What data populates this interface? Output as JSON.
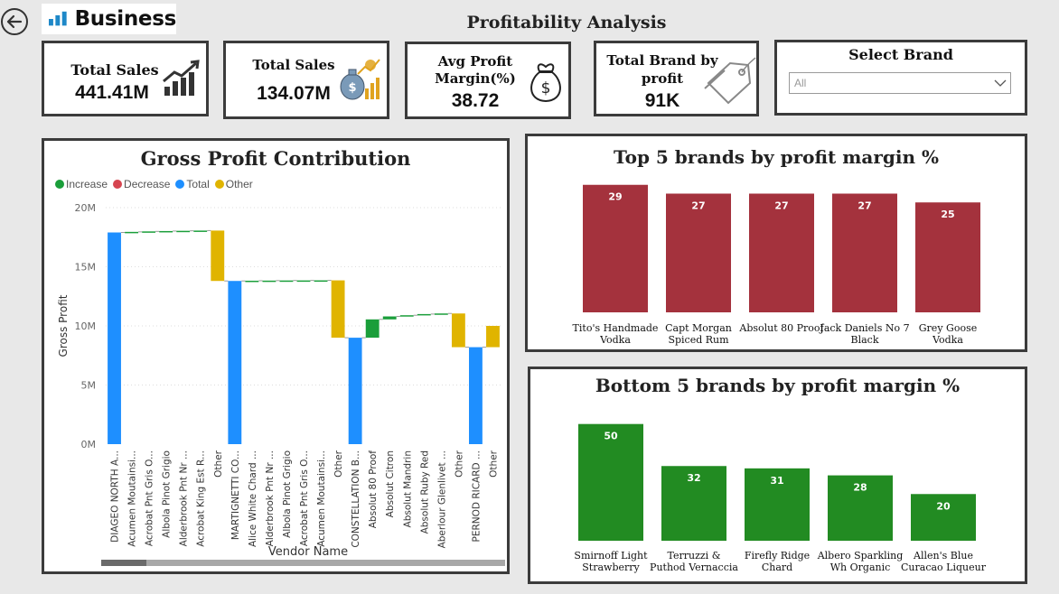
{
  "header": {
    "logo_text": "Business",
    "page_title": "Profitability Analysis"
  },
  "kpis": {
    "total_sales_1": {
      "label": "Total Sales",
      "value": "441.41M",
      "icon": "chart-growth-icon"
    },
    "total_sales_2": {
      "label": "Total Sales",
      "value": "134.07M",
      "icon": "money-bag-growth-icon"
    },
    "avg_profit_margin": {
      "label_line1": "Avg Profit",
      "label_line2": "Margin(%)",
      "value": "38.72",
      "icon": "money-bag-icon"
    },
    "total_brand_by_profit": {
      "label_line1": "Total Brand by",
      "label_line2": "profit",
      "value": "91K",
      "icon": "price-tag-icon"
    }
  },
  "select_brand": {
    "title": "Select Brand",
    "selected": "All",
    "icon": "chevron-down-icon"
  },
  "colors": {
    "increase": "#1a9e3a",
    "decrease": "#d64550",
    "total": "#1e8fff",
    "other": "#e0b400",
    "top5_bar": "#a4323d",
    "bottom5_bar": "#228b22"
  },
  "chart_data": [
    {
      "type": "waterfall",
      "title": "Gross Profit Contribution",
      "xlabel": "Vendor Name",
      "ylabel": "Gross Profit",
      "ylim": [
        0,
        20000000
      ],
      "ytick_labels": [
        "0M",
        "5M",
        "10M",
        "15M",
        "20M"
      ],
      "legend": [
        "Increase",
        "Decrease",
        "Total",
        "Other"
      ],
      "categories": [
        "DIAGEO NORTH A...",
        "Acumen Moutainsi...",
        "Acrobat Pnt Gris O...",
        "Albola Pinot Grigio",
        "Alderbrook Pnt Nr ...",
        "Acrobat King Est R...",
        "Other",
        "MARTIGNETTI CO...",
        "Alice White Chard ...",
        "Alderbrook Pnt Nr ...",
        "Albola Pinot Grigio",
        "Acrobat Pnt Gris O...",
        "Acumen Moutainsi...",
        "Other",
        "CONSTELLATION B...",
        "Absolut 80 Proof",
        "Absolut Citron",
        "Absolut Mandrin",
        "Absolut Ruby Red",
        "Aberlour Glenlivet ...",
        "Other",
        "PERNOD RICARD ...",
        "Other"
      ],
      "bars": [
        {
          "kind": "total",
          "start": 0,
          "end": 17900000
        },
        {
          "kind": "increase",
          "start": 17900000,
          "end": 17950000
        },
        {
          "kind": "increase",
          "start": 17950000,
          "end": 17990000
        },
        {
          "kind": "increase",
          "start": 17990000,
          "end": 18020000
        },
        {
          "kind": "increase",
          "start": 18020000,
          "end": 18040000
        },
        {
          "kind": "increase",
          "start": 18040000,
          "end": 18060000
        },
        {
          "kind": "other",
          "start": 18060000,
          "end": 13800000
        },
        {
          "kind": "total",
          "start": 0,
          "end": 13800000
        },
        {
          "kind": "increase",
          "start": 13800000,
          "end": 13820000
        },
        {
          "kind": "increase",
          "start": 13820000,
          "end": 13830000
        },
        {
          "kind": "increase",
          "start": 13830000,
          "end": 13840000
        },
        {
          "kind": "increase",
          "start": 13840000,
          "end": 13845000
        },
        {
          "kind": "increase",
          "start": 13845000,
          "end": 13850000
        },
        {
          "kind": "other",
          "start": 13850000,
          "end": 9000000
        },
        {
          "kind": "total",
          "start": 0,
          "end": 9000000
        },
        {
          "kind": "increase",
          "start": 9000000,
          "end": 10550000
        },
        {
          "kind": "increase",
          "start": 10550000,
          "end": 10800000
        },
        {
          "kind": "increase",
          "start": 10800000,
          "end": 10900000
        },
        {
          "kind": "increase",
          "start": 10900000,
          "end": 11000000
        },
        {
          "kind": "increase",
          "start": 11000000,
          "end": 11050000
        },
        {
          "kind": "other",
          "start": 11050000,
          "end": 8200000
        },
        {
          "kind": "total",
          "start": 0,
          "end": 8200000
        },
        {
          "kind": "other",
          "start": 8200000,
          "end": 10000000
        }
      ]
    },
    {
      "type": "bar",
      "title": "Top 5 brands by profit margin %",
      "categories": [
        [
          "Tito's Handmade",
          "Vodka"
        ],
        [
          "Capt Morgan",
          "Spiced Rum"
        ],
        [
          "Absolut 80 Proof"
        ],
        [
          "Jack Daniels No 7",
          "Black"
        ],
        [
          "Grey Goose",
          "Vodka"
        ]
      ],
      "values": [
        29,
        27,
        27,
        27,
        25
      ],
      "ylim": [
        0,
        31
      ]
    },
    {
      "type": "bar",
      "title": "Bottom 5 brands by profit margin %",
      "categories": [
        [
          "Smirnoff Light",
          "Strawberry"
        ],
        [
          "Terruzzi &",
          "Puthod Vernaccia"
        ],
        [
          "Firefly Ridge",
          "Chard"
        ],
        [
          "Albero Sparkling",
          "Wh Organic"
        ],
        [
          "Allen's Blue",
          "Curacao Liqueur"
        ]
      ],
      "values": [
        50,
        32,
        31,
        28,
        20
      ],
      "ylim": [
        0,
        58
      ]
    }
  ]
}
